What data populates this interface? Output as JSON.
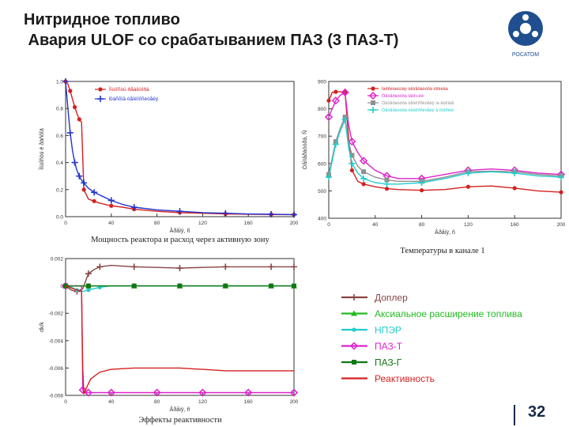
{
  "slide": {
    "title_line1": "Нитридное топливо",
    "title_line2": " Авария ULOF со срабатыванием ПАЗ (3 ПАЗ-Т)",
    "logo_text": "РОСАТОМ",
    "page_number": "32"
  },
  "chart_data": [
    {
      "type": "line",
      "caption": "Мощность реактора и расход  через активную зону",
      "ylabel": "Ìîùíîñòü è ðàñõîä",
      "xlabel": "Âðåìÿ, ñ",
      "xlim": [
        0,
        200
      ],
      "ylim": [
        0,
        1.0
      ],
      "xticks": [
        "0",
        "40",
        "80",
        "120",
        "160",
        "200"
      ],
      "yticks": [
        "0.0",
        "0.2",
        "0.4",
        "0.6",
        "0.8",
        "1.0"
      ],
      "legend": "top-right",
      "series": [
        {
          "name": "Ìîùíîñòü ðåàêòîðà",
          "color": "#d42020",
          "marker": "circle",
          "x": [
            0,
            2,
            4,
            6,
            8,
            10,
            12,
            14,
            16,
            20,
            25,
            30,
            40,
            50,
            60,
            80,
            100,
            120,
            140,
            160,
            180,
            200
          ],
          "y": [
            1.0,
            0.98,
            0.93,
            0.87,
            0.81,
            0.76,
            0.72,
            0.7,
            0.2,
            0.13,
            0.115,
            0.1,
            0.08,
            0.07,
            0.055,
            0.04,
            0.03,
            0.025,
            0.02,
            0.018,
            0.016,
            0.015
          ]
        },
        {
          "name": "Ðàñõîä òåïëîíîñèòåëÿ",
          "color": "#2233cc",
          "marker": "plus",
          "x": [
            0,
            2,
            4,
            6,
            8,
            10,
            12,
            14,
            16,
            20,
            25,
            30,
            40,
            50,
            60,
            80,
            100,
            120,
            140,
            160,
            180,
            200
          ],
          "y": [
            1.0,
            0.8,
            0.62,
            0.49,
            0.4,
            0.34,
            0.3,
            0.27,
            0.25,
            0.21,
            0.18,
            0.16,
            0.12,
            0.09,
            0.07,
            0.05,
            0.04,
            0.03,
            0.025,
            0.02,
            0.018,
            0.015
          ]
        }
      ]
    },
    {
      "type": "line",
      "caption": "Температуры в канале 1",
      "ylabel": "Òåìïåðàòóðà, Ñ",
      "xlabel": "Âðåìÿ, ñ",
      "xlim": [
        0,
        200
      ],
      "ylim": [
        400,
        900
      ],
      "xticks": [
        "0",
        "40",
        "80",
        "120",
        "160",
        "200"
      ],
      "yticks": [
        "400",
        "500",
        "600",
        "700",
        "800",
        "900"
      ],
      "legend": "top-right",
      "series": [
        {
          "name": "Ìàêñèìàëüíàÿ òåìïåðàòóðà òîïëèâà",
          "color": "#d42020",
          "marker": "circle",
          "x": [
            0,
            3,
            6,
            10,
            14,
            17,
            20,
            25,
            30,
            40,
            50,
            60,
            80,
            100,
            120,
            140,
            160,
            180,
            200
          ],
          "y": [
            830,
            860,
            862,
            862,
            860,
            700,
            575,
            535,
            525,
            515,
            508,
            505,
            502,
            505,
            515,
            518,
            510,
            500,
            495
          ]
        },
        {
          "name": "Òåìïåðàòóðà îáîëî÷êè",
          "color": "#dd22cc",
          "marker": "diamond",
          "x": [
            0,
            3,
            6,
            10,
            14,
            17,
            20,
            25,
            30,
            40,
            50,
            60,
            80,
            100,
            120,
            140,
            160,
            180,
            200
          ],
          "y": [
            770,
            800,
            830,
            850,
            860,
            745,
            680,
            640,
            610,
            575,
            555,
            545,
            545,
            560,
            575,
            580,
            575,
            565,
            560
          ]
        },
        {
          "name": "Òåìïåðàòóðà òåïëîíîñèòåëÿ íà âûõîäå",
          "color": "#909090",
          "marker": "square",
          "x": [
            0,
            3,
            6,
            10,
            14,
            17,
            20,
            25,
            30,
            40,
            50,
            60,
            80,
            100,
            120,
            140,
            160,
            180,
            200
          ],
          "y": [
            560,
            620,
            680,
            730,
            770,
            680,
            630,
            590,
            570,
            550,
            540,
            535,
            535,
            550,
            570,
            572,
            570,
            560,
            555
          ]
        },
        {
          "name": "Òåìïåðàòóðà òåïëîíîñèòåëÿ â ìîùíîñòè",
          "color": "#22cccc",
          "marker": "plus",
          "x": [
            0,
            3,
            6,
            10,
            14,
            17,
            20,
            25,
            30,
            40,
            50,
            60,
            80,
            100,
            120,
            140,
            160,
            180,
            200
          ],
          "y": [
            550,
            610,
            670,
            720,
            760,
            660,
            600,
            565,
            545,
            530,
            525,
            525,
            530,
            545,
            565,
            570,
            565,
            555,
            550
          ]
        }
      ]
    },
    {
      "type": "line",
      "caption": "Эффекты реактивности",
      "ylabel": "dk/k",
      "xlabel": "Âðåìÿ, ñ",
      "xlim": [
        0,
        200
      ],
      "ylim": [
        -0.008,
        0.002
      ],
      "xticks": [
        "0",
        "40",
        "80",
        "120",
        "160",
        "200"
      ],
      "yticks": [
        "0.002",
        "0",
        "-0.002",
        "-0.004",
        "-0.006",
        "-0.008"
      ],
      "legend": "below",
      "series": [
        {
          "name": "Доплер",
          "color": "#884444",
          "marker": "plus",
          "x": [
            0,
            5,
            10,
            15,
            20,
            25,
            30,
            40,
            60,
            80,
            100,
            120,
            140,
            160,
            180,
            200
          ],
          "y": [
            0,
            -0.0003,
            -0.0004,
            -0.0002,
            0.0009,
            0.0012,
            0.0014,
            0.0015,
            0.0014,
            0.00135,
            0.0013,
            0.00135,
            0.0014,
            0.0014,
            0.0014,
            0.0014
          ]
        },
        {
          "name": "Аксиальное расширение топлива",
          "color": "#22bb22",
          "marker": "triangle",
          "x": [
            0,
            10,
            20,
            40,
            60,
            80,
            100,
            120,
            140,
            160,
            180,
            200
          ],
          "y": [
            0,
            0,
            0,
            0,
            0,
            0,
            0,
            0,
            0,
            0,
            0,
            0
          ]
        },
        {
          "name": "НПЭР",
          "color": "#22cccc",
          "marker": "circle",
          "x": [
            0,
            5,
            10,
            15,
            20,
            25,
            30,
            40,
            60,
            80,
            100,
            120,
            140,
            160,
            180,
            200
          ],
          "y": [
            0,
            -0.0001,
            -0.0003,
            -0.0004,
            -0.0003,
            -0.0002,
            -0.0001,
            0,
            0,
            0,
            0,
            0,
            0,
            0,
            0,
            0
          ]
        },
        {
          "name": "ПАЗ-Т",
          "color": "#dd22cc",
          "marker": "diamond",
          "x": [
            0,
            14,
            15,
            16,
            20,
            30,
            40,
            60,
            80,
            100,
            120,
            140,
            160,
            180,
            200
          ],
          "y": [
            0,
            0,
            -0.0076,
            -0.0078,
            -0.0078,
            -0.0078,
            -0.0078,
            -0.0078,
            -0.0078,
            -0.0078,
            -0.0078,
            -0.0078,
            -0.0078,
            -0.0078,
            -0.0078
          ]
        },
        {
          "name": "ПАЗ-Г",
          "color": "#117711",
          "marker": "square",
          "x": [
            0,
            10,
            20,
            40,
            60,
            80,
            100,
            120,
            140,
            160,
            180,
            200
          ],
          "y": [
            0,
            0,
            0,
            0,
            0,
            0,
            0,
            0,
            0,
            0,
            0,
            0
          ]
        },
        {
          "name": "Реактивность",
          "color": "#d42020",
          "marker": "none",
          "x": [
            0,
            10,
            14,
            15,
            16,
            18,
            22,
            30,
            40,
            60,
            80,
            100,
            120,
            140,
            160,
            180,
            200
          ],
          "y": [
            0,
            -0.0003,
            -0.0004,
            -0.006,
            -0.0079,
            -0.0075,
            -0.0068,
            -0.0063,
            -0.0061,
            -0.006,
            -0.006,
            -0.006,
            -0.0061,
            -0.0062,
            -0.0062,
            -0.0062,
            -0.0062
          ]
        }
      ]
    }
  ]
}
